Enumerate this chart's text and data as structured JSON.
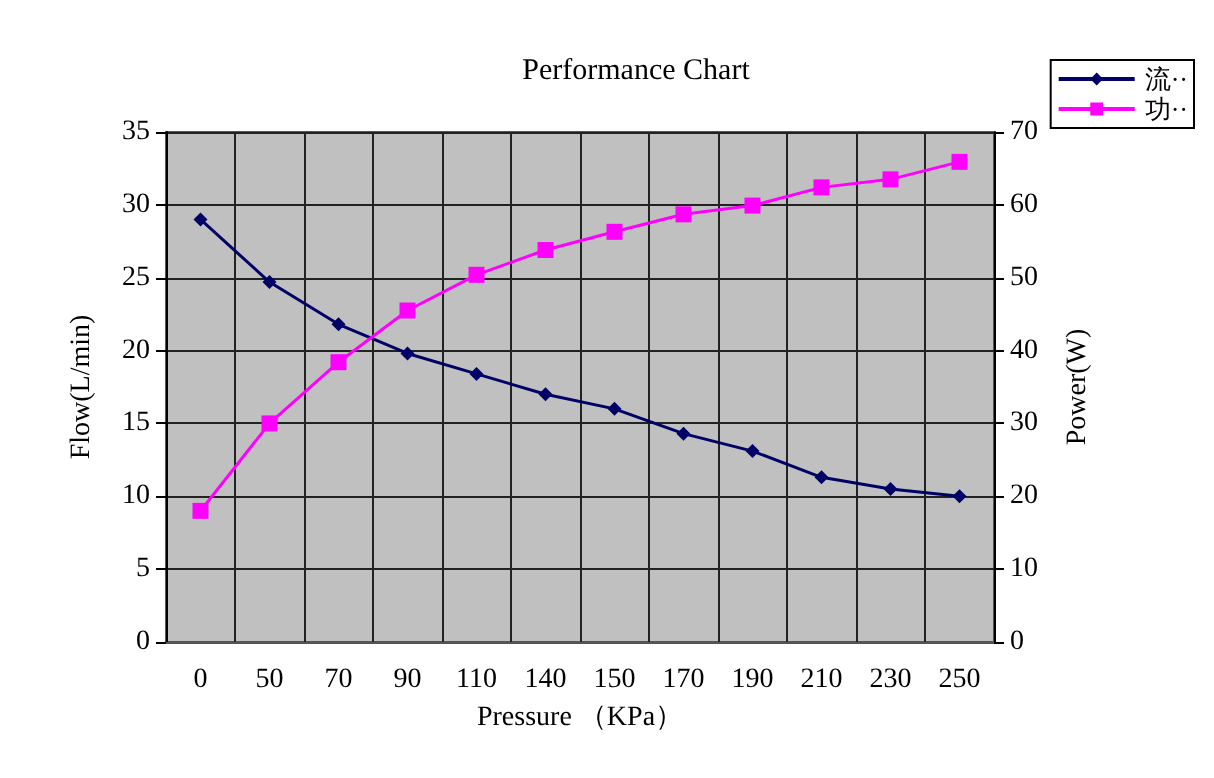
{
  "chart_data": {
    "type": "line",
    "title": "Performance Chart",
    "xlabel": "Pressure （KPa）",
    "ylabel": "Flow(L/min)",
    "y2label": "Power(W)",
    "categories": [
      "0",
      "50",
      "70",
      "90",
      "110",
      "140",
      "150",
      "170",
      "190",
      "210",
      "230",
      "250"
    ],
    "series": [
      {
        "name": "流··",
        "color": "#000066",
        "marker": "diamond",
        "values": [
          29,
          24.7,
          21.8,
          19.8,
          18.4,
          17.0,
          16.0,
          14.3,
          13.1,
          11.3,
          10.5,
          10.0
        ]
      },
      {
        "name": "功··",
        "color": "#ff00ff",
        "marker": "square",
        "axis": "y2",
        "values": [
          18,
          30,
          38.4,
          45.5,
          50.4,
          53.8,
          56.3,
          58.7,
          59.9,
          62.4,
          63.5,
          65.9
        ]
      }
    ],
    "ylim": [
      0,
      35
    ],
    "yticks": [
      0,
      5,
      10,
      15,
      20,
      25,
      30,
      35
    ],
    "y2lim": [
      0,
      70
    ],
    "y2ticks": [
      0,
      10,
      20,
      30,
      40,
      50,
      60,
      70
    ],
    "grid": true,
    "legend": "top right",
    "line_style": "solid"
  }
}
